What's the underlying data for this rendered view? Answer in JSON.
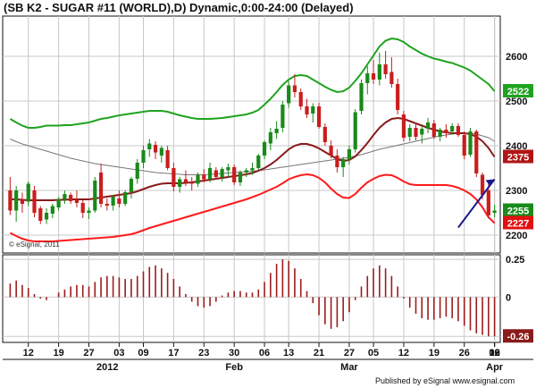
{
  "header": {
    "title": "(SB K2 - SUGAR #11 (WORLD),D) Dynamic,0:00-24:00 (Delayed)"
  },
  "footer": {
    "credit": "© eSignal, 2011",
    "published": "Published by eSignal  www.esignal.com"
  },
  "colors": {
    "candle_up": "#1a8a1a",
    "candle_down": "#c81e1e",
    "upper_band": "#1fa31f",
    "lower_band": "#ff1a1a",
    "midline": "#8b1a1a",
    "sma": "#777777",
    "oscillator": "#9b1c1c",
    "trendline": "#1a1a8c",
    "grid": "#c8c8c8"
  },
  "chart_data": [
    {
      "type": "candlestick",
      "title": "(SB K2 - SUGAR #11 (WORLD),D) Dynamic,0:00-24:00 (Delayed)",
      "year_label": "2012",
      "x_tick_labels": [
        "12",
        "19",
        "27",
        "03",
        "09",
        "17",
        "23",
        "30",
        "06",
        "13",
        "21",
        "27",
        "05",
        "12",
        "19",
        "26",
        "02",
        "09",
        "16"
      ],
      "month_labels": [
        "Feb",
        "Mar",
        "Apr"
      ],
      "y_tick_labels": [
        2200,
        2300,
        2400,
        2500,
        2600
      ],
      "ylim": [
        2160,
        2690
      ],
      "grid": true,
      "last_value_tags": [
        {
          "name": "upper_band",
          "value": 2522
        },
        {
          "name": "midline",
          "value": 2375
        },
        {
          "name": "close",
          "value": 2255
        },
        {
          "name": "lower_band",
          "value": 2227
        }
      ],
      "candles": [
        {
          "o": 2300,
          "h": 2330,
          "l": 2245,
          "c": 2255
        },
        {
          "o": 2255,
          "h": 2310,
          "l": 2230,
          "c": 2300
        },
        {
          "o": 2280,
          "h": 2295,
          "l": 2250,
          "c": 2270
        },
        {
          "o": 2275,
          "h": 2320,
          "l": 2265,
          "c": 2315
        },
        {
          "o": 2300,
          "h": 2310,
          "l": 2240,
          "c": 2250
        },
        {
          "o": 2260,
          "h": 2265,
          "l": 2225,
          "c": 2232
        },
        {
          "o": 2235,
          "h": 2260,
          "l": 2225,
          "c": 2250
        },
        {
          "o": 2248,
          "h": 2270,
          "l": 2238,
          "c": 2265
        },
        {
          "o": 2262,
          "h": 2285,
          "l": 2255,
          "c": 2280
        },
        {
          "o": 2280,
          "h": 2300,
          "l": 2270,
          "c": 2292
        },
        {
          "o": 2290,
          "h": 2295,
          "l": 2270,
          "c": 2276
        },
        {
          "o": 2278,
          "h": 2300,
          "l": 2262,
          "c": 2272
        },
        {
          "o": 2272,
          "h": 2278,
          "l": 2238,
          "c": 2250
        },
        {
          "o": 2250,
          "h": 2262,
          "l": 2236,
          "c": 2255
        },
        {
          "o": 2255,
          "h": 2330,
          "l": 2250,
          "c": 2322
        },
        {
          "o": 2340,
          "h": 2360,
          "l": 2262,
          "c": 2270
        },
        {
          "o": 2270,
          "h": 2282,
          "l": 2255,
          "c": 2266
        },
        {
          "o": 2266,
          "h": 2290,
          "l": 2255,
          "c": 2286
        },
        {
          "o": 2282,
          "h": 2300,
          "l": 2262,
          "c": 2270
        },
        {
          "o": 2270,
          "h": 2300,
          "l": 2265,
          "c": 2296
        },
        {
          "o": 2296,
          "h": 2330,
          "l": 2282,
          "c": 2326
        },
        {
          "o": 2326,
          "h": 2370,
          "l": 2315,
          "c": 2362
        },
        {
          "o": 2362,
          "h": 2400,
          "l": 2350,
          "c": 2390
        },
        {
          "o": 2392,
          "h": 2415,
          "l": 2375,
          "c": 2405
        },
        {
          "o": 2402,
          "h": 2410,
          "l": 2370,
          "c": 2385
        },
        {
          "o": 2378,
          "h": 2400,
          "l": 2362,
          "c": 2395
        },
        {
          "o": 2390,
          "h": 2400,
          "l": 2345,
          "c": 2350
        },
        {
          "o": 2350,
          "h": 2362,
          "l": 2298,
          "c": 2308
        },
        {
          "o": 2308,
          "h": 2330,
          "l": 2295,
          "c": 2325
        },
        {
          "o": 2325,
          "h": 2345,
          "l": 2310,
          "c": 2318
        },
        {
          "o": 2318,
          "h": 2330,
          "l": 2300,
          "c": 2315
        },
        {
          "o": 2315,
          "h": 2340,
          "l": 2308,
          "c": 2335
        },
        {
          "o": 2335,
          "h": 2348,
          "l": 2318,
          "c": 2325
        },
        {
          "o": 2325,
          "h": 2362,
          "l": 2318,
          "c": 2350
        },
        {
          "o": 2345,
          "h": 2352,
          "l": 2325,
          "c": 2330
        },
        {
          "o": 2330,
          "h": 2352,
          "l": 2320,
          "c": 2348
        },
        {
          "o": 2345,
          "h": 2360,
          "l": 2330,
          "c": 2352
        },
        {
          "o": 2352,
          "h": 2358,
          "l": 2312,
          "c": 2318
        },
        {
          "o": 2318,
          "h": 2345,
          "l": 2310,
          "c": 2340
        },
        {
          "o": 2340,
          "h": 2350,
          "l": 2330,
          "c": 2345
        },
        {
          "o": 2345,
          "h": 2362,
          "l": 2335,
          "c": 2350
        },
        {
          "o": 2350,
          "h": 2382,
          "l": 2345,
          "c": 2378
        },
        {
          "o": 2378,
          "h": 2412,
          "l": 2370,
          "c": 2408
        },
        {
          "o": 2405,
          "h": 2440,
          "l": 2390,
          "c": 2430
        },
        {
          "o": 2428,
          "h": 2455,
          "l": 2415,
          "c": 2438
        },
        {
          "o": 2440,
          "h": 2500,
          "l": 2430,
          "c": 2492
        },
        {
          "o": 2495,
          "h": 2545,
          "l": 2485,
          "c": 2535
        },
        {
          "o": 2535,
          "h": 2560,
          "l": 2508,
          "c": 2520
        },
        {
          "o": 2520,
          "h": 2528,
          "l": 2480,
          "c": 2488
        },
        {
          "o": 2488,
          "h": 2505,
          "l": 2462,
          "c": 2470
        },
        {
          "o": 2472,
          "h": 2495,
          "l": 2452,
          "c": 2488
        },
        {
          "o": 2488,
          "h": 2496,
          "l": 2438,
          "c": 2442
        },
        {
          "o": 2442,
          "h": 2450,
          "l": 2400,
          "c": 2408
        },
        {
          "o": 2400,
          "h": 2412,
          "l": 2372,
          "c": 2378
        },
        {
          "o": 2378,
          "h": 2392,
          "l": 2340,
          "c": 2352
        },
        {
          "o": 2352,
          "h": 2375,
          "l": 2330,
          "c": 2370
        },
        {
          "o": 2370,
          "h": 2400,
          "l": 2358,
          "c": 2392
        },
        {
          "o": 2392,
          "h": 2482,
          "l": 2385,
          "c": 2475
        },
        {
          "o": 2478,
          "h": 2548,
          "l": 2470,
          "c": 2540
        },
        {
          "o": 2540,
          "h": 2578,
          "l": 2515,
          "c": 2562
        },
        {
          "o": 2562,
          "h": 2592,
          "l": 2538,
          "c": 2548
        },
        {
          "o": 2548,
          "h": 2608,
          "l": 2535,
          "c": 2582
        },
        {
          "o": 2582,
          "h": 2612,
          "l": 2550,
          "c": 2560
        },
        {
          "o": 2565,
          "h": 2598,
          "l": 2530,
          "c": 2538
        },
        {
          "o": 2538,
          "h": 2550,
          "l": 2470,
          "c": 2480
        },
        {
          "o": 2470,
          "h": 2478,
          "l": 2410,
          "c": 2418
        },
        {
          "o": 2420,
          "h": 2448,
          "l": 2410,
          "c": 2440
        },
        {
          "o": 2440,
          "h": 2452,
          "l": 2412,
          "c": 2420
        },
        {
          "o": 2425,
          "h": 2445,
          "l": 2405,
          "c": 2438
        },
        {
          "o": 2438,
          "h": 2462,
          "l": 2428,
          "c": 2452
        },
        {
          "o": 2450,
          "h": 2458,
          "l": 2415,
          "c": 2420
        },
        {
          "o": 2420,
          "h": 2440,
          "l": 2410,
          "c": 2436
        },
        {
          "o": 2436,
          "h": 2448,
          "l": 2418,
          "c": 2428
        },
        {
          "o": 2432,
          "h": 2450,
          "l": 2425,
          "c": 2444
        },
        {
          "o": 2444,
          "h": 2450,
          "l": 2420,
          "c": 2424
        },
        {
          "o": 2424,
          "h": 2432,
          "l": 2370,
          "c": 2378
        },
        {
          "o": 2380,
          "h": 2440,
          "l": 2375,
          "c": 2432
        },
        {
          "o": 2432,
          "h": 2436,
          "l": 2330,
          "c": 2338
        },
        {
          "o": 2335,
          "h": 2340,
          "l": 2280,
          "c": 2290
        },
        {
          "o": 2300,
          "h": 2318,
          "l": 2238,
          "c": 2244
        },
        {
          "o": 2250,
          "h": 2268,
          "l": 2240,
          "c": 2255
        }
      ],
      "overlays": {
        "upper_band": [
          2460,
          2452,
          2445,
          2440,
          2440,
          2442,
          2445,
          2445,
          2445,
          2446,
          2446,
          2448,
          2450,
          2452,
          2456,
          2460,
          2462,
          2465,
          2468,
          2470,
          2472,
          2474,
          2476,
          2478,
          2478,
          2478,
          2476,
          2472,
          2468,
          2465,
          2462,
          2460,
          2460,
          2460,
          2461,
          2462,
          2464,
          2466,
          2468,
          2470,
          2474,
          2480,
          2492,
          2505,
          2520,
          2536,
          2548,
          2556,
          2558,
          2556,
          2548,
          2540,
          2532,
          2525,
          2520,
          2522,
          2530,
          2545,
          2562,
          2582,
          2602,
          2622,
          2635,
          2640,
          2638,
          2632,
          2622,
          2614,
          2606,
          2600,
          2595,
          2592,
          2588,
          2585,
          2580,
          2575,
          2568,
          2558,
          2548,
          2538,
          2522
        ],
        "midline": [
          2280,
          2280,
          2279,
          2278,
          2278,
          2278,
          2278,
          2278,
          2279,
          2279,
          2280,
          2280,
          2280,
          2280,
          2282,
          2284,
          2286,
          2288,
          2290,
          2292,
          2294,
          2298,
          2303,
          2308,
          2312,
          2315,
          2316,
          2316,
          2316,
          2317,
          2318,
          2320,
          2322,
          2324,
          2326,
          2328,
          2330,
          2332,
          2334,
          2336,
          2339,
          2344,
          2350,
          2358,
          2368,
          2380,
          2392,
          2400,
          2404,
          2404,
          2400,
          2394,
          2386,
          2378,
          2370,
          2366,
          2368,
          2376,
          2390,
          2406,
          2424,
          2440,
          2452,
          2460,
          2462,
          2460,
          2455,
          2450,
          2445,
          2440,
          2436,
          2432,
          2430,
          2428,
          2428,
          2428,
          2426,
          2420,
          2410,
          2395,
          2375
        ],
        "lower_band": [
          2205,
          2198,
          2192,
          2188,
          2186,
          2186,
          2186,
          2186,
          2187,
          2188,
          2189,
          2190,
          2191,
          2192,
          2193,
          2194,
          2195,
          2196,
          2198,
          2200,
          2202,
          2206,
          2211,
          2216,
          2220,
          2224,
          2228,
          2232,
          2236,
          2240,
          2244,
          2248,
          2252,
          2256,
          2260,
          2264,
          2268,
          2272,
          2276,
          2280,
          2285,
          2290,
          2296,
          2302,
          2308,
          2316,
          2325,
          2330,
          2334,
          2336,
          2334,
          2328,
          2318,
          2304,
          2292,
          2284,
          2283,
          2292,
          2306,
          2318,
          2326,
          2332,
          2335,
          2334,
          2328,
          2320,
          2314,
          2312,
          2312,
          2312,
          2312,
          2312,
          2312,
          2310,
          2306,
          2300,
          2292,
          2280,
          2262,
          2240,
          2227
        ],
        "sma": [
          2415,
          2409,
          2404,
          2400,
          2396,
          2392,
          2388,
          2384,
          2380,
          2376,
          2372,
          2369,
          2366,
          2363,
          2360,
          2358,
          2356,
          2354,
          2352,
          2350,
          2348,
          2346,
          2344,
          2342,
          2340,
          2339,
          2338,
          2337,
          2336,
          2335,
          2335,
          2335,
          2335,
          2336,
          2337,
          2338,
          2339,
          2340,
          2341,
          2342,
          2343,
          2344,
          2346,
          2348,
          2350,
          2352,
          2354,
          2356,
          2358,
          2360,
          2362,
          2364,
          2366,
          2368,
          2370,
          2372,
          2374,
          2377,
          2380,
          2384,
          2388,
          2392,
          2395,
          2398,
          2401,
          2404,
          2407,
          2410,
          2413,
          2416,
          2419,
          2422,
          2424,
          2426,
          2428,
          2428,
          2428,
          2426,
          2422,
          2418,
          2410
        ]
      },
      "trendline": [
        {
          "x": 74,
          "y": 2217
        },
        {
          "x": 80,
          "y": 2325
        }
      ]
    },
    {
      "type": "bar",
      "series_label": "oscillator",
      "y_tick_labels": [
        "0.25",
        "0",
        "-0.26"
      ],
      "last_value": -0.26,
      "ylim": [
        -0.3,
        0.28
      ],
      "values": [
        0.09,
        0.11,
        0.08,
        0.06,
        0.02,
        -0.01,
        -0.02,
        0.0,
        0.03,
        0.05,
        0.07,
        0.08,
        0.08,
        0.07,
        0.1,
        0.13,
        0.14,
        0.14,
        0.13,
        0.12,
        0.12,
        0.14,
        0.17,
        0.2,
        0.21,
        0.19,
        0.16,
        0.12,
        0.07,
        0.02,
        -0.03,
        -0.06,
        -0.07,
        -0.06,
        -0.03,
        0.01,
        0.03,
        0.04,
        0.04,
        0.03,
        0.03,
        0.05,
        0.1,
        0.16,
        0.22,
        0.25,
        0.24,
        0.19,
        0.12,
        0.04,
        -0.04,
        -0.12,
        -0.18,
        -0.21,
        -0.2,
        -0.16,
        -0.1,
        -0.02,
        0.07,
        0.14,
        0.19,
        0.21,
        0.19,
        0.14,
        0.07,
        -0.01,
        -0.07,
        -0.11,
        -0.14,
        -0.15,
        -0.15,
        -0.14,
        -0.13,
        -0.14,
        -0.16,
        -0.19,
        -0.22,
        -0.24,
        -0.25,
        -0.26,
        -0.26
      ]
    }
  ]
}
